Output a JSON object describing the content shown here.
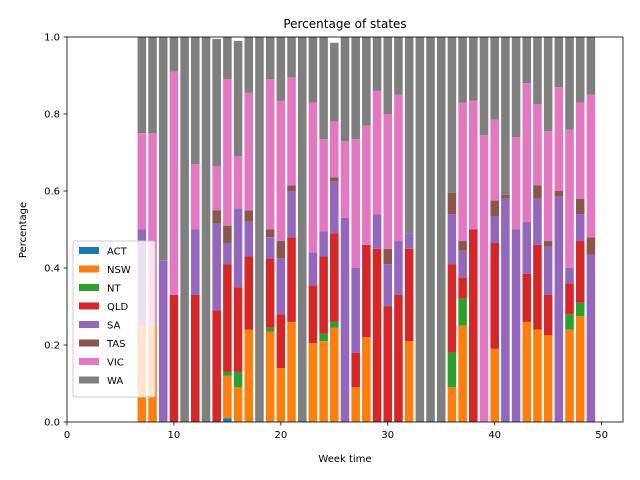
{
  "chart_data": {
    "type": "bar",
    "stacked": true,
    "title": "Percentage of states",
    "xlabel": "Week time",
    "ylabel": "Percentage",
    "xlim": [
      0,
      52
    ],
    "ylim": [
      0,
      1
    ],
    "xticks": [
      "0",
      "10",
      "20",
      "30",
      "40",
      "50"
    ],
    "yticks": [
      "0.0",
      "0.2",
      "0.4",
      "0.6",
      "0.8",
      "1.0"
    ],
    "legend_position": "lower-left",
    "grid": false,
    "x": [
      7,
      8,
      9,
      10,
      11,
      12,
      13,
      14,
      15,
      16,
      17,
      18,
      19,
      20,
      21,
      22,
      23,
      24,
      25,
      26,
      27,
      28,
      29,
      30,
      31,
      32,
      33,
      34,
      35,
      36,
      37,
      38,
      39,
      40,
      41,
      42,
      43,
      44,
      45,
      46,
      47,
      48,
      49,
      50
    ],
    "series": [
      {
        "name": "ACT",
        "color": "#1f77b4",
        "values": [
          0,
          0,
          0,
          0,
          0,
          0,
          0,
          0,
          0.01,
          0,
          0,
          0,
          0,
          0,
          0,
          0,
          0,
          0,
          0,
          0,
          0,
          0,
          0,
          0,
          0,
          0,
          0,
          0,
          0,
          0,
          0,
          0,
          0,
          0,
          0,
          0,
          0,
          0,
          0,
          0,
          0,
          0,
          0,
          0
        ]
      },
      {
        "name": "NSW",
        "color": "#ff7f0e",
        "values": [
          0.25,
          0.25,
          0,
          0,
          0,
          0,
          0,
          0,
          0.11,
          0.09,
          0.24,
          0,
          0.235,
          0.14,
          0.26,
          0,
          0.205,
          0.21,
          0.245,
          0,
          0.09,
          0.22,
          0,
          0,
          0,
          0.21,
          0,
          0,
          0,
          0.09,
          0.25,
          0,
          0,
          0.19,
          0,
          0,
          0.26,
          0.24,
          0.225,
          0,
          0.24,
          0.275,
          0,
          0
        ]
      },
      {
        "name": "NT",
        "color": "#2ca02c",
        "values": [
          0,
          0,
          0,
          0,
          0,
          0,
          0,
          0,
          0.01,
          0.04,
          0,
          0,
          0.01,
          0,
          0,
          0,
          0,
          0.02,
          0.015,
          0,
          0,
          0,
          0,
          0,
          0,
          0,
          0,
          0,
          0,
          0.09,
          0.07,
          0,
          0,
          0,
          0,
          0,
          0,
          0,
          0,
          0,
          0.04,
          0.035,
          0,
          0
        ]
      },
      {
        "name": "QLD",
        "color": "#d62728",
        "values": [
          0,
          0,
          0,
          0.33,
          0,
          0.33,
          0,
          0.29,
          0.28,
          0.22,
          0.19,
          0,
          0.18,
          0.14,
          0.22,
          0,
          0.15,
          0.2,
          0.23,
          0,
          0.09,
          0.24,
          0.45,
          0.3,
          0.33,
          0.24,
          0,
          0,
          0,
          0.23,
          0.055,
          0.5,
          0,
          0.275,
          0,
          0,
          0.125,
          0.22,
          0.105,
          0,
          0.08,
          0.16,
          0,
          0
        ]
      },
      {
        "name": "SA",
        "color": "#9467bd",
        "values": [
          0.25,
          0,
          0.42,
          0,
          0,
          0.17,
          0,
          0.225,
          0.055,
          0.205,
          0.09,
          0,
          0.055,
          0.145,
          0.12,
          0,
          0.085,
          0.065,
          0.135,
          0.53,
          0.22,
          0,
          0.09,
          0.11,
          0.14,
          0.04,
          0,
          0,
          0,
          0.13,
          0.07,
          0,
          0,
          0.07,
          0.58,
          0.5,
          0.135,
          0.12,
          0.125,
          0.585,
          0.04,
          0.07,
          0.435,
          0
        ]
      },
      {
        "name": "TAS",
        "color": "#8c564b",
        "values": [
          0,
          0,
          0,
          0,
          0,
          0,
          0,
          0.035,
          0.045,
          0,
          0.03,
          0,
          0.02,
          0.045,
          0.015,
          0,
          0,
          0,
          0.01,
          0,
          0,
          0,
          0,
          0.04,
          0,
          0,
          0,
          0,
          0,
          0.055,
          0.025,
          0,
          0,
          0.04,
          0.01,
          0,
          0,
          0.035,
          0.015,
          0.015,
          0,
          0.04,
          0.045,
          0
        ]
      },
      {
        "name": "VIC",
        "color": "#e377c2",
        "values": [
          0.25,
          0.5,
          0,
          0.58,
          0,
          0.17,
          0,
          0.115,
          0.38,
          0.135,
          0.305,
          0,
          0.39,
          0.365,
          0.28,
          0,
          0.39,
          0.24,
          0.145,
          0.2,
          0.335,
          0.31,
          0.32,
          0.35,
          0.38,
          0,
          0,
          0,
          0,
          0,
          0.36,
          0.335,
          0.745,
          0.21,
          0,
          0.24,
          0.36,
          0.21,
          0.285,
          0.27,
          0.36,
          0.25,
          0.37,
          0
        ]
      },
      {
        "name": "WA",
        "color": "#7f7f7f",
        "values": [
          0.25,
          0.25,
          0.58,
          0.09,
          1,
          0.33,
          1,
          0.33,
          0.115,
          0.3,
          0.145,
          1,
          0.11,
          0.165,
          0.105,
          1,
          0.17,
          0.265,
          0.205,
          0.27,
          0.265,
          0.23,
          0.14,
          0.2,
          0.15,
          0.51,
          1,
          1,
          1,
          0.405,
          0.17,
          0.165,
          0.255,
          0.215,
          0.41,
          0.26,
          0.12,
          0.175,
          0.25,
          0.13,
          0.24,
          0.17,
          0.15,
          0
        ]
      }
    ]
  }
}
